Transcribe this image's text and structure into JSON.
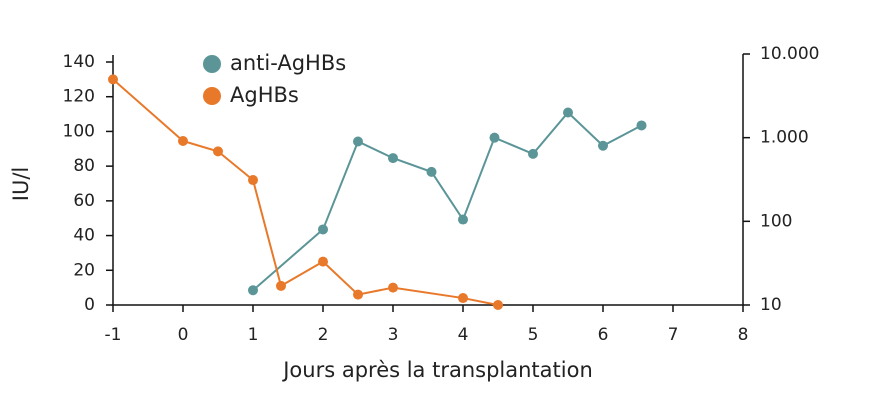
{
  "chart_data": {
    "type": "line",
    "x_label": "Jours après la transplantation",
    "y_label": "IU/l",
    "xlim": [
      -1,
      8
    ],
    "xticks": [
      -1,
      0,
      1,
      2,
      3,
      4,
      5,
      6,
      7,
      8
    ],
    "ylim": [
      0,
      140
    ],
    "yticks": [
      0,
      20,
      40,
      60,
      80,
      100,
      120,
      140
    ],
    "y2lim": [
      10,
      10000
    ],
    "y2_log": true,
    "y2ticks": [
      10,
      100,
      {
        "value": 1000,
        "label": "1.000"
      },
      {
        "value": 10000,
        "label": "10.000"
      }
    ],
    "series": [
      {
        "name": "anti-AgHBs",
        "color": "#5b9598",
        "axis": "y2",
        "x": [
          1,
          2,
          2.5,
          3,
          3.55,
          4,
          4.45,
          5,
          5.5,
          6,
          6.55
        ],
        "values": [
          15,
          80,
          900,
          570,
          390,
          105,
          1000,
          640,
          2000,
          800,
          1400
        ]
      },
      {
        "name": "AgHBs",
        "color": "#e8792a",
        "x": [
          -1,
          0,
          0.5,
          1,
          1.4,
          2,
          2.5,
          3,
          4,
          4.5
        ],
        "values": [
          130,
          94.5,
          88.5,
          72,
          11,
          25,
          6,
          10,
          4,
          0
        ]
      }
    ]
  }
}
